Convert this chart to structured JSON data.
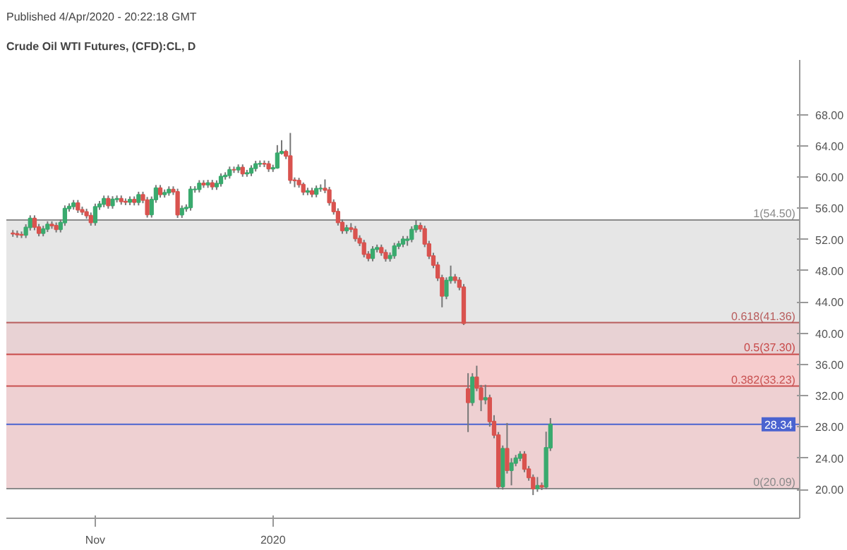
{
  "chart_data": {
    "type": "candlestick",
    "title": "Crude Oil WTI Futures, (CFD):CL, D",
    "annotations": [
      "Published 4/Apr/2020 - 20:22:18 GMT"
    ],
    "categories": [
      null,
      null,
      null,
      null,
      null,
      null,
      null,
      null,
      null,
      null,
      null,
      null,
      null,
      null,
      null,
      null,
      null,
      null,
      null,
      "Nov",
      null,
      null,
      null,
      null,
      null,
      null,
      null,
      null,
      null,
      null,
      null,
      null,
      null,
      null,
      null,
      null,
      null,
      null,
      null,
      null,
      null,
      null,
      null,
      null,
      null,
      null,
      null,
      null,
      null,
      null,
      null,
      null,
      null,
      null,
      null,
      null,
      null,
      null,
      null,
      null,
      "2020",
      null,
      null,
      null,
      null,
      null,
      null,
      null,
      null,
      null,
      null,
      null,
      null,
      null,
      null,
      null,
      null,
      null,
      null,
      null,
      null,
      null,
      null,
      null,
      null,
      null,
      null,
      null,
      null,
      null,
      null,
      null,
      null,
      null,
      null,
      null,
      null,
      null,
      null,
      null,
      null,
      null,
      null,
      null,
      null,
      null,
      null,
      null,
      null,
      null,
      null,
      null,
      null,
      null,
      null,
      null,
      null,
      null,
      null,
      null,
      null,
      null,
      null,
      null,
      null,
      null,
      null,
      null,
      null,
      null,
      null,
      null,
      null,
      null,
      null,
      null,
      null,
      null,
      null,
      null,
      null,
      null,
      null,
      null,
      null,
      null,
      null,
      null,
      null,
      null,
      null,
      null,
      null,
      null,
      null,
      null,
      null,
      null,
      null,
      null,
      null,
      null,
      null,
      null,
      null,
      null,
      null,
      null,
      null,
      null,
      null,
      null,
      null,
      null,
      null,
      null,
      null,
      null,
      null,
      null,
      null,
      null
    ],
    "ohlc": [
      [
        52.81,
        53.21,
        52.35,
        52.75
      ],
      [
        52.75,
        53.15,
        52.23,
        52.63
      ],
      [
        52.63,
        53.03,
        52.19,
        52.59
      ],
      [
        52.59,
        53.95,
        52.19,
        53.55
      ],
      [
        53.55,
        55.1,
        53.15,
        54.7
      ],
      [
        54.7,
        55.1,
        53.19,
        53.59
      ],
      [
        53.59,
        53.99,
        52.41,
        52.81
      ],
      [
        52.81,
        53.76,
        52.41,
        53.36
      ],
      [
        53.36,
        54.33,
        52.96,
        53.93
      ],
      [
        53.93,
        54.33,
        53.38,
        53.78
      ],
      [
        53.78,
        54.18,
        52.91,
        53.31
      ],
      [
        53.31,
        54.56,
        52.91,
        54.16
      ],
      [
        54.16,
        56.37,
        53.76,
        55.97
      ],
      [
        55.97,
        56.63,
        55.57,
        56.23
      ],
      [
        56.23,
        57.06,
        55.83,
        56.66
      ],
      [
        56.66,
        57.06,
        55.41,
        55.81
      ],
      [
        55.81,
        56.21,
        55.14,
        55.54
      ],
      [
        55.54,
        55.94,
        54.66,
        55.06
      ],
      [
        55.06,
        55.46,
        53.78,
        54.18
      ],
      [
        54.18,
        56.6,
        53.78,
        56.2
      ],
      [
        56.2,
        56.94,
        55.8,
        56.54
      ],
      [
        56.54,
        57.63,
        56.14,
        57.23
      ],
      [
        57.23,
        57.63,
        55.95,
        56.35
      ],
      [
        56.35,
        57.55,
        55.95,
        57.15
      ],
      [
        57.15,
        57.64,
        56.75,
        57.24
      ],
      [
        57.24,
        57.64,
        56.46,
        56.86
      ],
      [
        56.86,
        57.26,
        56.4,
        56.8
      ],
      [
        56.8,
        57.52,
        56.4,
        57.12
      ],
      [
        57.12,
        57.52,
        56.37,
        56.77
      ],
      [
        56.77,
        58.12,
        56.37,
        57.72
      ],
      [
        57.72,
        58.12,
        56.65,
        57.05
      ],
      [
        57.05,
        57.45,
        54.81,
        55.21
      ],
      [
        55.21,
        57.51,
        54.81,
        57.11
      ],
      [
        57.11,
        58.98,
        56.71,
        58.58
      ],
      [
        58.58,
        58.98,
        57.37,
        57.77
      ],
      [
        57.77,
        58.41,
        57.37,
        58.01
      ],
      [
        58.01,
        58.81,
        57.61,
        58.41
      ],
      [
        58.41,
        58.81,
        57.71,
        58.11
      ],
      [
        58.11,
        58.51,
        54.77,
        55.17
      ],
      [
        55.17,
        56.36,
        54.77,
        55.96
      ],
      [
        55.96,
        56.5,
        55.56,
        56.1
      ],
      [
        56.1,
        58.83,
        55.7,
        58.43
      ],
      [
        58.4,
        58.83,
        58.0,
        58.43
      ],
      [
        58.43,
        59.6,
        58.03,
        59.2
      ],
      [
        59.2,
        59.6,
        58.62,
        59.02
      ],
      [
        59.02,
        59.64,
        58.62,
        59.24
      ],
      [
        59.24,
        59.64,
        58.36,
        58.76
      ],
      [
        58.76,
        59.58,
        58.36,
        59.18
      ],
      [
        59.18,
        60.47,
        58.78,
        60.07
      ],
      [
        60.07,
        60.61,
        59.67,
        60.21
      ],
      [
        60.21,
        61.34,
        59.81,
        60.94
      ],
      [
        60.94,
        61.34,
        60.53,
        60.93
      ],
      [
        60.93,
        61.62,
        60.53,
        61.22
      ],
      [
        61.22,
        61.62,
        60.04,
        60.44
      ],
      [
        60.44,
        60.92,
        60.04,
        60.52
      ],
      [
        60.52,
        61.51,
        60.12,
        61.11
      ],
      [
        61.11,
        62.08,
        60.71,
        61.68
      ],
      [
        61.68,
        62.12,
        61.28,
        61.72
      ],
      [
        61.72,
        62.12,
        61.28,
        61.68
      ],
      [
        61.68,
        62.08,
        60.66,
        61.06
      ],
      [
        61.06,
        61.58,
        60.66,
        61.18
      ],
      [
        61.18,
        64.09,
        61.06,
        63.05
      ],
      [
        63.05,
        64.72,
        62.88,
        63.27
      ],
      [
        63.27,
        63.5,
        62.3,
        62.7
      ],
      [
        62.7,
        65.65,
        59.15,
        59.61
      ],
      [
        59.61,
        59.95,
        58.7,
        59.56
      ],
      [
        59.56,
        59.9,
        58.64,
        59.04
      ],
      [
        59.04,
        59.3,
        57.68,
        58.08
      ],
      [
        58.08,
        58.63,
        57.68,
        58.23
      ],
      [
        58.23,
        58.63,
        57.41,
        57.81
      ],
      [
        57.81,
        58.92,
        57.41,
        58.52
      ],
      [
        58.52,
        59.06,
        58.12,
        58.54
      ],
      [
        58.54,
        59.7,
        57.94,
        58.34
      ],
      [
        58.34,
        58.74,
        56.34,
        56.74
      ],
      [
        56.74,
        57.14,
        55.19,
        55.59
      ],
      [
        55.59,
        55.99,
        53.79,
        54.19
      ],
      [
        54.19,
        54.59,
        52.74,
        53.14
      ],
      [
        53.14,
        53.88,
        52.74,
        53.48
      ],
      [
        53.48,
        54.1,
        52.93,
        53.33
      ],
      [
        53.33,
        53.73,
        51.74,
        52.14
      ],
      [
        52.14,
        52.54,
        51.16,
        51.56
      ],
      [
        51.56,
        51.96,
        49.71,
        50.11
      ],
      [
        50.11,
        50.51,
        49.21,
        49.61
      ],
      [
        49.61,
        51.15,
        49.21,
        50.75
      ],
      [
        50.75,
        51.35,
        50.35,
        50.95
      ],
      [
        50.95,
        51.35,
        49.92,
        50.32
      ],
      [
        50.32,
        50.72,
        49.17,
        49.57
      ],
      [
        49.57,
        50.34,
        49.17,
        49.94
      ],
      [
        49.94,
        51.57,
        49.54,
        51.17
      ],
      [
        51.17,
        51.82,
        50.77,
        51.42
      ],
      [
        51.42,
        52.45,
        51.02,
        52.05
      ],
      [
        51.9,
        52.45,
        51.2,
        52.05
      ],
      [
        52.05,
        53.69,
        51.65,
        53.29
      ],
      [
        53.29,
        54.5,
        52.89,
        53.78
      ],
      [
        53.78,
        54.18,
        52.98,
        53.38
      ],
      [
        53.38,
        53.78,
        51.03,
        51.43
      ],
      [
        51.43,
        51.83,
        49.5,
        49.9
      ],
      [
        49.9,
        50.3,
        48.33,
        48.73
      ],
      [
        48.73,
        49.13,
        46.69,
        47.09
      ],
      [
        47.09,
        47.49,
        43.32,
        44.76
      ],
      [
        44.76,
        47.15,
        44.36,
        46.75
      ],
      [
        46.75,
        48.66,
        46.35,
        47.18
      ],
      [
        47.18,
        47.58,
        46.38,
        46.78
      ],
      [
        46.78,
        47.18,
        45.5,
        45.9
      ],
      [
        45.9,
        46.3,
        41.05,
        41.28
      ],
      [
        32.87,
        34.88,
        27.34,
        31.13
      ],
      [
        31.13,
        34.88,
        30.7,
        34.36
      ],
      [
        34.36,
        35.84,
        32.58,
        32.98
      ],
      [
        32.98,
        33.38,
        30.02,
        31.5
      ],
      [
        31.5,
        33.4,
        30.9,
        31.73
      ],
      [
        31.73,
        32.13,
        28.03,
        28.7
      ],
      [
        28.7,
        29.5,
        26.55,
        26.95
      ],
      [
        26.95,
        27.35,
        20.06,
        20.37
      ],
      [
        20.37,
        25.62,
        19.97,
        25.22
      ],
      [
        25.22,
        28.5,
        22.03,
        22.43
      ],
      [
        22.43,
        24.0,
        20.52,
        23.36
      ],
      [
        23.36,
        24.41,
        22.96,
        24.01
      ],
      [
        24.01,
        24.89,
        23.61,
        24.49
      ],
      [
        24.49,
        24.89,
        22.2,
        22.6
      ],
      [
        22.6,
        23.0,
        21.11,
        21.51
      ],
      [
        21.51,
        21.91,
        19.27,
        20.09
      ],
      [
        20.09,
        21.58,
        19.69,
        20.48
      ],
      [
        20.48,
        20.88,
        19.91,
        20.31
      ],
      [
        20.31,
        27.39,
        20.01,
        25.32
      ],
      [
        25.32,
        29.13,
        24.92,
        28.34
      ],
      null,
      null,
      null,
      null,
      null,
      null,
      null,
      null,
      null,
      null,
      null,
      null,
      null,
      null,
      null,
      null,
      null,
      null,
      null,
      null,
      null,
      null,
      null,
      null,
      null,
      null,
      null,
      null,
      null,
      null,
      null,
      null,
      null,
      null,
      null,
      null,
      null,
      null,
      null,
      null,
      null,
      null,
      null,
      null,
      null,
      null,
      null,
      null,
      null,
      null,
      null,
      null,
      null,
      null,
      null,
      null,
      null
    ],
    "ylim": [
      16.3,
      75
    ],
    "yticks": [
      {
        "value": 20,
        "label": "20.00"
      },
      {
        "value": 24,
        "label": "24.00"
      },
      {
        "value": 28,
        "label": "28.00"
      },
      {
        "value": 32,
        "label": "32.00"
      },
      {
        "value": 36,
        "label": "36.00"
      },
      {
        "value": 40,
        "label": "40.00"
      },
      {
        "value": 44,
        "label": "44.00"
      },
      {
        "value": 48,
        "label": "48.00"
      },
      {
        "value": 52,
        "label": "52.00"
      },
      {
        "value": 56,
        "label": "56.00"
      },
      {
        "value": 60,
        "label": "60.00"
      },
      {
        "value": 64,
        "label": "64.00"
      },
      {
        "value": 68,
        "label": "68.00"
      }
    ],
    "bands": [
      {
        "axis": "y",
        "from": 41.36,
        "to": 54.5,
        "color": "#e6e6e6"
      },
      {
        "axis": "y",
        "from": 37.3,
        "to": 41.36,
        "color": "#e8d2d4"
      },
      {
        "axis": "y",
        "from": 33.23,
        "to": 37.3,
        "color": "#f6cccd"
      },
      {
        "axis": "y",
        "from": 20.09,
        "to": 33.23,
        "color": "#eed0d2"
      }
    ],
    "ref_lines": [
      {
        "axis": "y",
        "value": 54.5,
        "label": "1(54.50)",
        "color": "#8a8a8a"
      },
      {
        "axis": "y",
        "value": 41.36,
        "label": "0.618(41.36)",
        "color": "#b85c5c"
      },
      {
        "axis": "y",
        "value": 37.3,
        "label": "0.5(37.30)",
        "color": "#c84848"
      },
      {
        "axis": "y",
        "value": 33.23,
        "label": "0.382(33.23)",
        "color": "#c85050"
      },
      {
        "axis": "y",
        "value": 20.09,
        "label": "0(20.09)",
        "color": "#8a8a8a"
      },
      {
        "axis": "y",
        "value": 28.34,
        "label": "28.34",
        "color": "#4a63d0"
      }
    ],
    "grid": false
  }
}
